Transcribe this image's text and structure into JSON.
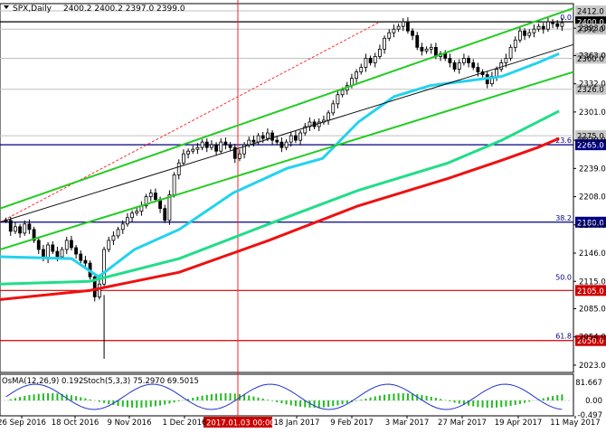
{
  "header": {
    "symbol": "SPX,Daily",
    "ohlc": "2400.2 2400.2 2397.0 2399.0"
  },
  "osma_label": "OsMA(12,26,9) 0.192",
  "stoch_label": "Stoch(5,3,3) 75.2970 69.5015",
  "vline_date_label": "2017.01.03 00:00",
  "chart_data": {
    "type": "line",
    "title": "SPX,Daily",
    "price_axis": {
      "ylim": [
        2015,
        2420
      ],
      "ticks": [
        "2023.0",
        "2054.0",
        "2085.0",
        "2115.0",
        "2146.0",
        "2177.0",
        "2208.0",
        "2239.0",
        "2270.0",
        "2301.0",
        "2332.0",
        "2363.0",
        "2393.0"
      ]
    },
    "time_axis": {
      "tick_labels": [
        "26 Sep 2016",
        "18 Oct 2016",
        "9 Nov 2016",
        "1 Dec 2016",
        "18 Jan 2017",
        "9 Feb 2017",
        "3 Mar 2017",
        "27 Mar 2017",
        "19 Apr 2017",
        "11 May 2017"
      ]
    },
    "price_levels": [
      {
        "label": "2412.0",
        "value": 2412.0,
        "color": "#c0c0c0"
      },
      {
        "label": "2400.0",
        "value": 2400.0,
        "color": "#000000"
      },
      {
        "label": "2392.0",
        "value": 2392.0,
        "color": "#c0c0c0"
      },
      {
        "label": "2360.0",
        "value": 2360.0,
        "color": "#c0c0c0"
      },
      {
        "label": "2326.0",
        "value": 2326.0,
        "color": "#c0c0c0"
      },
      {
        "label": "2275.0",
        "value": 2275.0,
        "color": "#c0c0c0"
      },
      {
        "label": "2265.0",
        "value": 2265.0,
        "color": "#000080"
      },
      {
        "label": "2180.0",
        "value": 2180.0,
        "color": "#000080"
      },
      {
        "label": "2105.0",
        "value": 2105.0,
        "color": "#cc0000"
      },
      {
        "label": "2050.0",
        "value": 2050.0,
        "color": "#cc0000"
      }
    ],
    "fib_levels": [
      {
        "label": "0.0",
        "value": 2400.0
      },
      {
        "label": "23.6",
        "value": 2265.0
      },
      {
        "label": "38.2",
        "value": 2180.0
      },
      {
        "label": "50.0",
        "value": 2115.0
      },
      {
        "label": "61.8",
        "value": 2050.0
      }
    ],
    "moving_averages": [
      {
        "color": "#22d3ee",
        "points": [
          [
            0,
            2142
          ],
          [
            80,
            2140
          ],
          [
            110,
            2120
          ],
          [
            150,
            2150
          ],
          [
            200,
            2172
          ],
          [
            260,
            2212
          ],
          [
            320,
            2239
          ],
          [
            360,
            2250
          ],
          [
            400,
            2290
          ],
          [
            440,
            2318
          ],
          [
            480,
            2330
          ],
          [
            520,
            2335
          ],
          [
            560,
            2340
          ],
          [
            600,
            2355
          ],
          [
            624,
            2365
          ]
        ]
      },
      {
        "color": "#22dd88",
        "points": [
          [
            0,
            2112
          ],
          [
            100,
            2115
          ],
          [
            200,
            2140
          ],
          [
            300,
            2178
          ],
          [
            400,
            2215
          ],
          [
            500,
            2245
          ],
          [
            560,
            2270
          ],
          [
            600,
            2290
          ],
          [
            624,
            2302
          ]
        ]
      },
      {
        "color": "#ee1111",
        "points": [
          [
            0,
            2095
          ],
          [
            100,
            2105
          ],
          [
            200,
            2125
          ],
          [
            300,
            2160
          ],
          [
            400,
            2198
          ],
          [
            500,
            2228
          ],
          [
            560,
            2248
          ],
          [
            600,
            2262
          ],
          [
            624,
            2272
          ]
        ]
      }
    ],
    "channel_lines": [
      {
        "color": "#22cc22",
        "points": [
          [
            0,
            2195
          ],
          [
            640,
            2415
          ]
        ]
      },
      {
        "color": "#22cc22",
        "points": [
          [
            0,
            2150
          ],
          [
            640,
            2345
          ]
        ]
      },
      {
        "color": "#111111",
        "points": [
          [
            0,
            2180
          ],
          [
            640,
            2375
          ]
        ]
      }
    ],
    "price_series_close": [
      2182,
      2170,
      2175,
      2168,
      2178,
      2172,
      2160,
      2150,
      2140,
      2155,
      2148,
      2142,
      2150,
      2160,
      2152,
      2145,
      2138,
      2135,
      2120,
      2098,
      2112,
      2150,
      2160,
      2165,
      2172,
      2178,
      2185,
      2190,
      2192,
      2198,
      2208,
      2212,
      2205,
      2195,
      2182,
      2210,
      2232,
      2245,
      2255,
      2258,
      2260,
      2262,
      2268,
      2262,
      2265,
      2258,
      2268,
      2265,
      2262,
      2250,
      2255,
      2265,
      2270,
      2268,
      2275,
      2272,
      2278,
      2270,
      2268,
      2262,
      2268,
      2275,
      2270,
      2278,
      2285,
      2290,
      2285,
      2290,
      2292,
      2300,
      2310,
      2320,
      2325,
      2330,
      2338,
      2345,
      2350,
      2360,
      2355,
      2362,
      2370,
      2382,
      2388,
      2392,
      2395,
      2400,
      2390,
      2385,
      2372,
      2368,
      2370,
      2372,
      2362,
      2365,
      2360,
      2355,
      2348,
      2355,
      2360,
      2355,
      2350,
      2345,
      2342,
      2332,
      2340,
      2348,
      2355,
      2360,
      2372,
      2380,
      2390,
      2385,
      2388,
      2392,
      2395,
      2392,
      2400,
      2398,
      2395,
      2399
    ]
  }
}
